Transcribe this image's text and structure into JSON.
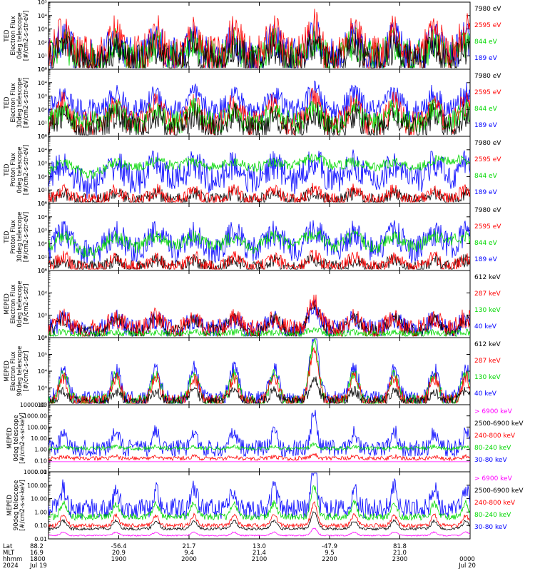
{
  "colors": {
    "black": "#000000",
    "red": "#ff0000",
    "green": "#00d800",
    "blue": "#0000ff",
    "magenta": "#ff00ff"
  },
  "chart_data": [
    {
      "type": "line",
      "ylabel": [
        "TED",
        "Electron Flux",
        "0deg telescope",
        "[#/cm2-s-str-eV]"
      ],
      "yscale": "log",
      "yticks": [
        "10⁰",
        "10¹",
        "10²",
        "10³",
        "10⁴",
        "10⁵"
      ],
      "ylim": [
        1,
        100000
      ],
      "legend": [
        {
          "label": "7980 eV",
          "color": "black"
        },
        {
          "label": "2595 eV",
          "color": "red"
        },
        {
          "label": "844 eV",
          "color": "green"
        },
        {
          "label": "189 eV",
          "color": "blue"
        }
      ]
    },
    {
      "type": "line",
      "ylabel": [
        "TED",
        "Electron Flux",
        "30deg telescope",
        "[#/cm2-s-str-eV]"
      ],
      "yscale": "log",
      "yticks": [
        "10⁰",
        "10¹",
        "10²",
        "10³",
        "10⁴",
        "10⁵"
      ],
      "ylim": [
        1,
        100000
      ],
      "legend": [
        {
          "label": "7980 eV",
          "color": "black"
        },
        {
          "label": "2595 eV",
          "color": "red"
        },
        {
          "label": "844 eV",
          "color": "green"
        },
        {
          "label": "189 eV",
          "color": "blue"
        }
      ]
    },
    {
      "type": "line",
      "ylabel": [
        "TED",
        "Proton Flux",
        "0deg telescope",
        "[#/cm2-s-str-eV]"
      ],
      "yscale": "log",
      "yticks": [
        "10⁰",
        "10¹",
        "10²",
        "10³",
        "10⁴",
        "10⁵"
      ],
      "ylim": [
        1,
        100000
      ],
      "legend": [
        {
          "label": "7980 eV",
          "color": "black"
        },
        {
          "label": "2595 eV",
          "color": "red"
        },
        {
          "label": "844 eV",
          "color": "green"
        },
        {
          "label": "189 eV",
          "color": "blue"
        }
      ]
    },
    {
      "type": "line",
      "ylabel": [
        "TED",
        "Proton Flux",
        "30deg telescope",
        "[#/cm2-s-str-eV]"
      ],
      "yscale": "log",
      "yticks": [
        "10⁰",
        "10¹",
        "10²",
        "10³",
        "10⁴",
        "10⁵"
      ],
      "ylim": [
        1,
        100000
      ],
      "legend": [
        {
          "label": "7980 eV",
          "color": "black"
        },
        {
          "label": "2595 eV",
          "color": "red"
        },
        {
          "label": "844 eV",
          "color": "green"
        },
        {
          "label": "189 eV",
          "color": "blue"
        }
      ]
    },
    {
      "type": "line",
      "ylabel": [
        "MEPED",
        "Electron Flux",
        "0deg telescope",
        "[#/cm2-s-str]"
      ],
      "yscale": "log",
      "yticks": [
        "10²",
        "10³",
        "10⁴",
        "10⁵"
      ],
      "ylim": [
        100,
        100000
      ],
      "legend": [
        {
          "label": "612 keV",
          "color": "black"
        },
        {
          "label": "287 keV",
          "color": "red"
        },
        {
          "label": "130 keV",
          "color": "green"
        },
        {
          "label": "40 keV",
          "color": "blue"
        }
      ]
    },
    {
      "type": "line",
      "ylabel": [
        "MEPED",
        "Electron Flux",
        "90deg telescope",
        "[#/cm2-s-str]"
      ],
      "yscale": "log",
      "yticks": [
        "10²",
        "10³",
        "10⁴",
        "10⁵",
        "10⁶"
      ],
      "ylim": [
        100,
        1000000
      ],
      "legend": [
        {
          "label": "612 keV",
          "color": "black"
        },
        {
          "label": "287 keV",
          "color": "red"
        },
        {
          "label": "130 keV",
          "color": "green"
        },
        {
          "label": "40 keV",
          "color": "blue"
        }
      ]
    },
    {
      "type": "line",
      "ylabel": [
        "MEPED",
        "0deg telescope",
        "[#/cm2-s-sr-keV]"
      ],
      "yscale": "log",
      "yticks": [
        "0.01",
        "0.10",
        "1.00",
        "10.00",
        "100.00",
        "1000.00",
        "10000.00"
      ],
      "ylim": [
        0.01,
        10000
      ],
      "legend": [
        {
          "label": "> 6900 keV",
          "color": "magenta"
        },
        {
          "label": "2500-6900 keV",
          "color": "black"
        },
        {
          "label": "240-800 keV",
          "color": "red"
        },
        {
          "label": "80-240 keV",
          "color": "green"
        },
        {
          "label": "30-80 keV",
          "color": "blue"
        }
      ]
    },
    {
      "type": "line",
      "ylabel": [
        "MEPED",
        "90deg telescope",
        "[#/cm2-s-sr-keV]"
      ],
      "yscale": "log",
      "yticks": [
        "0.01",
        "0.10",
        "1.00",
        "10.00",
        "100.00",
        "1000.00"
      ],
      "ylim": [
        0.01,
        1000
      ],
      "legend": [
        {
          "label": "> 6900 keV",
          "color": "magenta"
        },
        {
          "label": "2500-6900 keV",
          "color": "black"
        },
        {
          "label": "240-800 keV",
          "color": "red"
        },
        {
          "label": "80-240 keV",
          "color": "green"
        },
        {
          "label": "30-80 keV",
          "color": "blue"
        }
      ]
    }
  ],
  "x_axis": {
    "row_labels": [
      "Lat",
      "MLT",
      "hhmm",
      "2024"
    ],
    "ticks": [
      {
        "lat": "88.2",
        "mlt": "16.9",
        "hhmm": "1800",
        "date": "Jul 19"
      },
      {
        "lat": "-56.4",
        "mlt": "20.9",
        "hhmm": "1900",
        "date": ""
      },
      {
        "lat": "21.7",
        "mlt": "9.4",
        "hhmm": "2000",
        "date": ""
      },
      {
        "lat": "13.0",
        "mlt": "21.4",
        "hhmm": "2100",
        "date": ""
      },
      {
        "lat": "-47.9",
        "mlt": "9.5",
        "hhmm": "2200",
        "date": ""
      },
      {
        "lat": "81.8",
        "mlt": "21.0",
        "hhmm": "2300",
        "date": ""
      },
      {
        "lat": "",
        "mlt": "",
        "hhmm": "0000",
        "date": "Jul 20"
      }
    ]
  }
}
